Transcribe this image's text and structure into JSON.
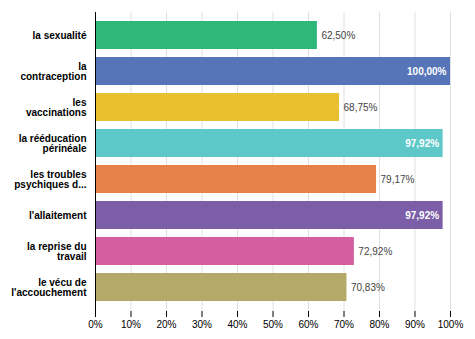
{
  "chart_data": {
    "type": "bar",
    "orientation": "horizontal",
    "categories": [
      "la sexualité",
      "la\ncontraception",
      "les\nvaccinations",
      "la rééducation\npérinéale",
      "les troubles\npsychiques d...",
      "l'allaitement",
      "la reprise du\ntravail",
      "le vécu de\nl'accouchement"
    ],
    "values": [
      62.5,
      100.0,
      68.75,
      97.92,
      79.17,
      97.92,
      72.92,
      70.83
    ],
    "value_labels": [
      "62,50%",
      "100,00%",
      "68,75%",
      "97,92%",
      "79,17%",
      "97,92%",
      "72,92%",
      "70,83%"
    ],
    "colors": [
      "#2db87a",
      "#5575b8",
      "#e8c030",
      "#5ec8c8",
      "#e8804a",
      "#7b5ea7",
      "#d45fa0",
      "#b5a96a"
    ],
    "xlim": [
      0,
      100
    ],
    "xticks": [
      {
        "value": 0,
        "label": "0%"
      },
      {
        "value": 10,
        "label": "10%"
      },
      {
        "value": 20,
        "label": "20%"
      },
      {
        "value": 30,
        "label": "30%"
      },
      {
        "value": 40,
        "label": "40%"
      },
      {
        "value": 50,
        "label": "50%"
      },
      {
        "value": 60,
        "label": "60%"
      },
      {
        "value": 70,
        "label": "70%"
      },
      {
        "value": 80,
        "label": "80%"
      },
      {
        "value": 90,
        "label": "90%"
      },
      {
        "value": 100,
        "label": "100%"
      }
    ],
    "grid": true,
    "data_labels": true
  }
}
